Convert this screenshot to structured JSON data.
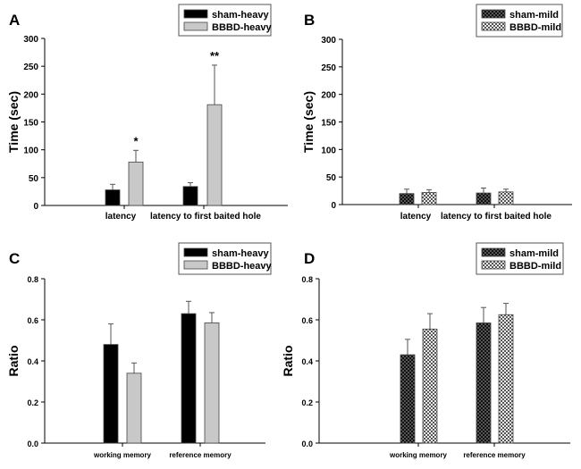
{
  "chart_data": [
    {
      "panel_label": "A",
      "type": "bar",
      "categories": [
        "latency",
        "latency to first baited hole"
      ],
      "series": [
        {
          "name": "sham-heavy",
          "values": [
            28,
            34
          ],
          "error_upper": [
            38,
            41
          ],
          "color": "#000000",
          "pattern": "solid"
        },
        {
          "name": "BBBD-heavy",
          "values": [
            78,
            181
          ],
          "error_upper": [
            99,
            252
          ],
          "color": "#c8c8c8",
          "pattern": "solid"
        }
      ],
      "annotations": [
        {
          "series": 1,
          "category": 0,
          "text": "*"
        },
        {
          "series": 1,
          "category": 1,
          "text": "**"
        }
      ],
      "ylabel": "Time (sec)",
      "ylim": [
        0,
        300
      ],
      "yticks": [
        "0",
        "50",
        "100",
        "150",
        "200",
        "250",
        "300"
      ],
      "legend": "top-right",
      "grid": false
    },
    {
      "panel_label": "B",
      "type": "bar",
      "categories": [
        "latency",
        "latency to first baited hole"
      ],
      "series": [
        {
          "name": "sham-mild",
          "values": [
            20,
            21
          ],
          "error_upper": [
            28,
            30
          ],
          "color": "#222222",
          "pattern": "dark-checker"
        },
        {
          "name": "BBBD-mild",
          "values": [
            22,
            23
          ],
          "error_upper": [
            27,
            28
          ],
          "color": "#d0d0d0",
          "pattern": "light-checker"
        }
      ],
      "annotations": [],
      "ylabel": "Time (sec)",
      "ylim": [
        0,
        300
      ],
      "yticks": [
        "0",
        "50",
        "100",
        "150",
        "200",
        "250",
        "300"
      ],
      "legend": "top-right",
      "grid": false
    },
    {
      "panel_label": "C",
      "type": "bar",
      "categories": [
        "working memory",
        "reference memory"
      ],
      "series": [
        {
          "name": "sham-heavy",
          "values": [
            0.48,
            0.63
          ],
          "error_upper": [
            0.58,
            0.69
          ],
          "color": "#000000",
          "pattern": "solid"
        },
        {
          "name": "BBBD-heavy",
          "values": [
            0.34,
            0.585
          ],
          "error_upper": [
            0.39,
            0.635
          ],
          "color": "#c8c8c8",
          "pattern": "solid"
        }
      ],
      "annotations": [],
      "ylabel": "Ratio",
      "ylim": [
        0,
        0.8
      ],
      "yticks": [
        "0.0",
        "0.2",
        "0.4",
        "0.6",
        "0.8"
      ],
      "legend": "top-right",
      "grid": false
    },
    {
      "panel_label": "D",
      "type": "bar",
      "categories": [
        "working memory",
        "reference memory"
      ],
      "series": [
        {
          "name": "sham-mild",
          "values": [
            0.43,
            0.585
          ],
          "error_upper": [
            0.505,
            0.66
          ],
          "color": "#222222",
          "pattern": "dark-checker"
        },
        {
          "name": "BBBD-mild",
          "values": [
            0.555,
            0.625
          ],
          "error_upper": [
            0.63,
            0.68
          ],
          "color": "#d0d0d0",
          "pattern": "light-checker"
        }
      ],
      "annotations": [],
      "ylabel": "Ratio",
      "ylim": [
        0,
        0.8
      ],
      "yticks": [
        "0.0",
        "0.2",
        "0.4",
        "0.6",
        "0.8"
      ],
      "legend": "top-right",
      "grid": false
    }
  ]
}
